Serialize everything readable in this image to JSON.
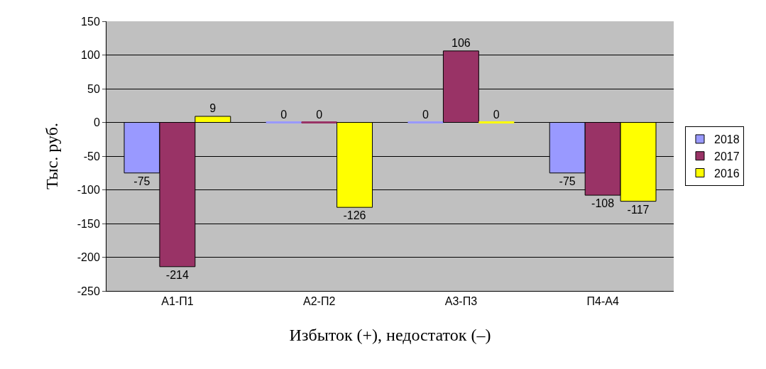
{
  "chart_data": {
    "type": "bar",
    "ylabel": "Тыс. руб.",
    "xlabel": "Избыток (+), недостаток (–)",
    "categories": [
      "А1-П1",
      "А2-П2",
      "А3-П3",
      "П4-А4"
    ],
    "series": [
      {
        "name": "2018",
        "color": "#9999ff",
        "values": [
          -75,
          0,
          0,
          -75
        ]
      },
      {
        "name": "2017",
        "color": "#993366",
        "values": [
          -214,
          0,
          106,
          -108
        ]
      },
      {
        "name": "2016",
        "color": "#ffff00",
        "values": [
          9,
          -126,
          0,
          -117
        ]
      }
    ],
    "ylim": [
      -250,
      150
    ],
    "yticks": [
      -250,
      -200,
      -150,
      -100,
      -50,
      0,
      50,
      100,
      150
    ],
    "grid": "y",
    "legend": "right",
    "data_labels": true
  }
}
